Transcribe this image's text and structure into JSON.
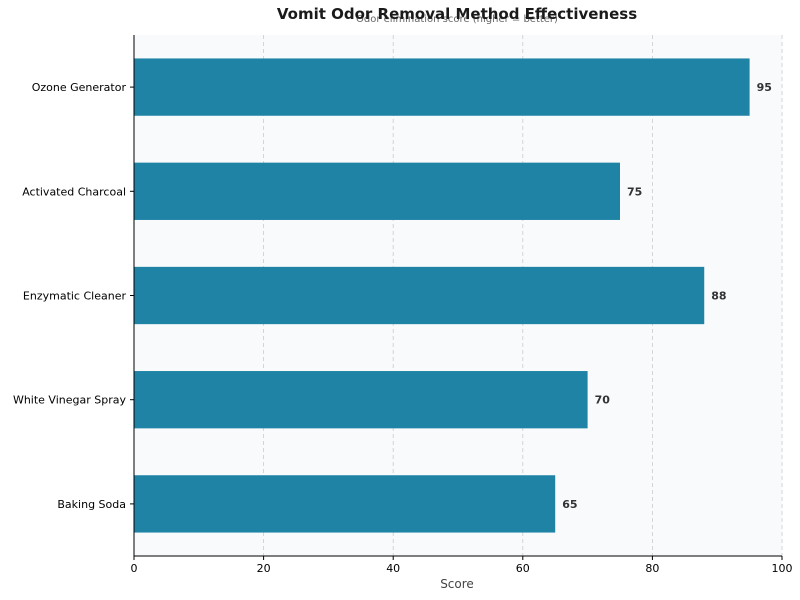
{
  "chart_data": {
    "type": "bar",
    "orientation": "horizontal",
    "title": "Vomit Odor Removal Method Effectiveness",
    "subtitle": "Odor elimination score (higher = better)",
    "xlabel": "Score",
    "ylabel": "",
    "categories": [
      "Ozone Generator",
      "Activated Charcoal",
      "Enzymatic Cleaner",
      "White Vinegar Spray",
      "Baking Soda"
    ],
    "values": [
      95,
      75,
      88,
      70,
      65
    ],
    "xlim": [
      0,
      100
    ],
    "xticks": [
      0,
      20,
      40,
      60,
      80,
      100
    ],
    "grid": "vertical-dashed",
    "data_labels": true,
    "colors": {
      "bar": "#1f83a6",
      "plot_background": "#f8fafc",
      "grid": "#cccccc"
    }
  }
}
